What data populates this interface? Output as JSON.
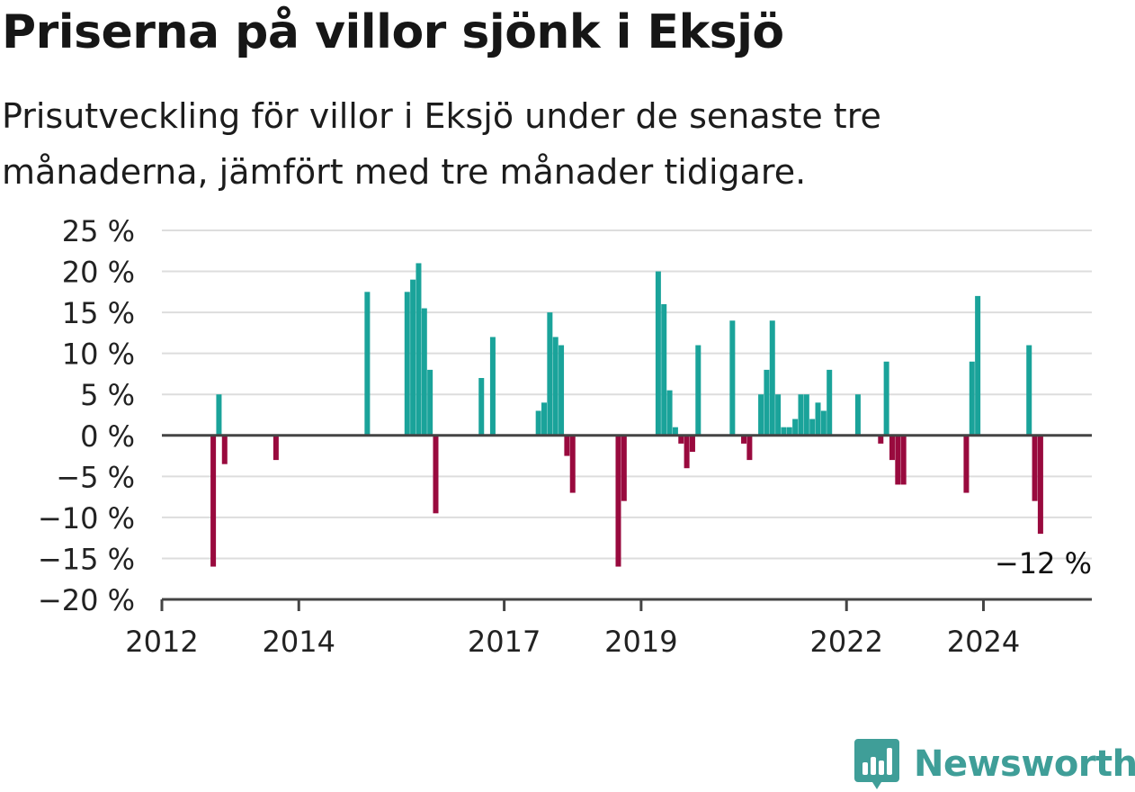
{
  "title": "Priserna på villor sjönk i Eksjö",
  "subtitle": "Prisutveckling för villor i Eksjö under de senaste tre månaderna, jämfört med tre månader tidigare.",
  "brand": {
    "name": "Newsworthy",
    "icon": "newsworthy-logo-icon"
  },
  "colors": {
    "positive": "#1aa39a",
    "negative": "#990a3e",
    "grid": "#dddddd",
    "axis": "#444444"
  },
  "chart_data": {
    "type": "bar",
    "ylim": [
      -20,
      25
    ],
    "y_ticks": [
      25,
      20,
      15,
      10,
      5,
      0,
      -5,
      -10,
      -15,
      -20
    ],
    "y_tick_labels": [
      "25 %",
      "20 %",
      "15 %",
      "10 %",
      "5 %",
      "0 %",
      "−5 %",
      "−10 %",
      "−15 %",
      "−20 %"
    ],
    "x_range": [
      "2012-01",
      "2025-08"
    ],
    "x_tick_labels": [
      {
        "label": "2012",
        "date": "2012-01"
      },
      {
        "label": "2014",
        "date": "2014-01"
      },
      {
        "label": "2017",
        "date": "2017-01"
      },
      {
        "label": "2019",
        "date": "2019-01"
      },
      {
        "label": "2022",
        "date": "2022-01"
      },
      {
        "label": "2024",
        "date": "2024-01"
      }
    ],
    "grid": true,
    "last_value_label": "−12 %",
    "series": [
      {
        "points": [
          {
            "date": "2012-10",
            "value": -16
          },
          {
            "date": "2012-11",
            "value": 5
          },
          {
            "date": "2012-12",
            "value": -3.5
          },
          {
            "date": "2013-09",
            "value": -3
          },
          {
            "date": "2015-01",
            "value": 17.5
          },
          {
            "date": "2015-08",
            "value": 17.5
          },
          {
            "date": "2015-09",
            "value": 19
          },
          {
            "date": "2015-10",
            "value": 21
          },
          {
            "date": "2015-11",
            "value": 15.5
          },
          {
            "date": "2015-12",
            "value": 8
          },
          {
            "date": "2016-01",
            "value": -9.5
          },
          {
            "date": "2016-09",
            "value": 7
          },
          {
            "date": "2016-11",
            "value": 12
          },
          {
            "date": "2017-07",
            "value": 3
          },
          {
            "date": "2017-08",
            "value": 4
          },
          {
            "date": "2017-09",
            "value": 15
          },
          {
            "date": "2017-10",
            "value": 12
          },
          {
            "date": "2017-11",
            "value": 11
          },
          {
            "date": "2017-12",
            "value": -2.5
          },
          {
            "date": "2018-01",
            "value": -7
          },
          {
            "date": "2018-09",
            "value": -16
          },
          {
            "date": "2018-10",
            "value": -8
          },
          {
            "date": "2019-04",
            "value": 20
          },
          {
            "date": "2019-05",
            "value": 16
          },
          {
            "date": "2019-06",
            "value": 5.5
          },
          {
            "date": "2019-07",
            "value": 1
          },
          {
            "date": "2019-08",
            "value": -1
          },
          {
            "date": "2019-09",
            "value": -4
          },
          {
            "date": "2019-10",
            "value": -2
          },
          {
            "date": "2019-11",
            "value": 11
          },
          {
            "date": "2020-05",
            "value": 14
          },
          {
            "date": "2020-07",
            "value": -1
          },
          {
            "date": "2020-08",
            "value": -3
          },
          {
            "date": "2020-10",
            "value": 5
          },
          {
            "date": "2020-11",
            "value": 8
          },
          {
            "date": "2020-12",
            "value": 14
          },
          {
            "date": "2021-01",
            "value": 5
          },
          {
            "date": "2021-02",
            "value": 1
          },
          {
            "date": "2021-03",
            "value": 1
          },
          {
            "date": "2021-04",
            "value": 2
          },
          {
            "date": "2021-05",
            "value": 5
          },
          {
            "date": "2021-06",
            "value": 5
          },
          {
            "date": "2021-07",
            "value": 2
          },
          {
            "date": "2021-08",
            "value": 4
          },
          {
            "date": "2021-09",
            "value": 3
          },
          {
            "date": "2021-10",
            "value": 8
          },
          {
            "date": "2022-03",
            "value": 5
          },
          {
            "date": "2022-07",
            "value": -1
          },
          {
            "date": "2022-08",
            "value": 9
          },
          {
            "date": "2022-09",
            "value": -3
          },
          {
            "date": "2022-10",
            "value": -6
          },
          {
            "date": "2022-11",
            "value": -6
          },
          {
            "date": "2023-10",
            "value": -7
          },
          {
            "date": "2023-11",
            "value": 9
          },
          {
            "date": "2023-12",
            "value": 17
          },
          {
            "date": "2024-09",
            "value": 11
          },
          {
            "date": "2024-10",
            "value": -8
          },
          {
            "date": "2024-11",
            "value": -12
          }
        ]
      }
    ]
  }
}
